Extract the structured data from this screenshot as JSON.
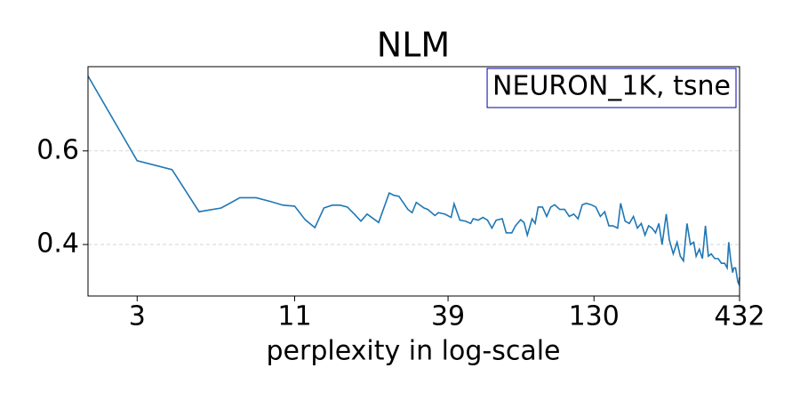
{
  "chart_data": {
    "type": "line",
    "title": "NLM",
    "xlabel": "perplexity in log-scale",
    "annotation": "NEURON_1K, tsne",
    "xscale": "log",
    "xlim": [
      2,
      432
    ],
    "xticks": [
      3,
      11,
      39,
      130,
      432
    ],
    "ylim": [
      0.29,
      0.78
    ],
    "yticks": [
      0.4,
      0.6
    ],
    "grid": true,
    "series": [
      {
        "color": "#1f77b4",
        "x": [
          2,
          3,
          4,
          5,
          6,
          7,
          8,
          9,
          10,
          11,
          12,
          13,
          14,
          15,
          16,
          17,
          18,
          19,
          20,
          22,
          24,
          25,
          26,
          28,
          29,
          30,
          32,
          33,
          35,
          36,
          38,
          40,
          41,
          43,
          45,
          47,
          48,
          50,
          52,
          54,
          56,
          58,
          61,
          63,
          66,
          68,
          71,
          73,
          75,
          78,
          80,
          82,
          85,
          88,
          91,
          94,
          98,
          102,
          106,
          110,
          114,
          118,
          122,
          127,
          132,
          137,
          142,
          147,
          152,
          158,
          162,
          168,
          174,
          180,
          186,
          192,
          198,
          204,
          210,
          216,
          222,
          228,
          236,
          242,
          250,
          258,
          265,
          272,
          280,
          288,
          296,
          302,
          310,
          318,
          326,
          334,
          342,
          352,
          362,
          372,
          382,
          390,
          395,
          402,
          408,
          412,
          418,
          422,
          426,
          430,
          432
        ],
        "values": [
          0.76,
          0.579,
          0.56,
          0.47,
          0.478,
          0.5,
          0.5,
          0.492,
          0.484,
          0.482,
          0.453,
          0.436,
          0.478,
          0.484,
          0.484,
          0.48,
          0.465,
          0.45,
          0.465,
          0.447,
          0.51,
          0.505,
          0.503,
          0.475,
          0.468,
          0.49,
          0.478,
          0.475,
          0.462,
          0.468,
          0.465,
          0.458,
          0.487,
          0.452,
          0.45,
          0.445,
          0.455,
          0.452,
          0.458,
          0.452,
          0.435,
          0.452,
          0.455,
          0.425,
          0.425,
          0.44,
          0.453,
          0.447,
          0.42,
          0.455,
          0.445,
          0.48,
          0.48,
          0.46,
          0.48,
          0.485,
          0.475,
          0.475,
          0.46,
          0.465,
          0.455,
          0.485,
          0.488,
          0.485,
          0.48,
          0.46,
          0.47,
          0.44,
          0.44,
          0.435,
          0.488,
          0.45,
          0.445,
          0.46,
          0.435,
          0.445,
          0.42,
          0.44,
          0.435,
          0.425,
          0.445,
          0.4,
          0.465,
          0.41,
          0.38,
          0.405,
          0.375,
          0.365,
          0.445,
          0.4,
          0.405,
          0.375,
          0.39,
          0.37,
          0.44,
          0.375,
          0.38,
          0.37,
          0.37,
          0.36,
          0.36,
          0.35,
          0.405,
          0.365,
          0.34,
          0.35,
          0.35,
          0.335,
          0.32,
          0.315,
          0.33
        ]
      }
    ]
  }
}
